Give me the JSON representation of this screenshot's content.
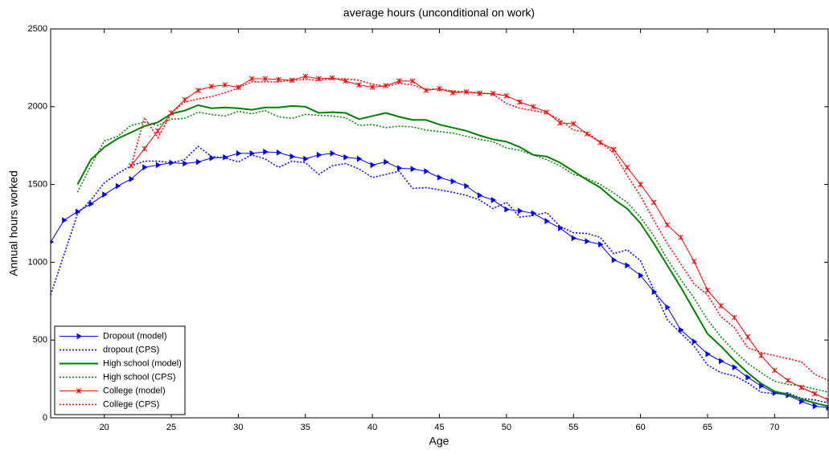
{
  "chart_data": {
    "type": "line",
    "title": "average hours (unconditional on work)",
    "xlabel": "Age",
    "ylabel": "Annual hours worked",
    "x": [
      16,
      17,
      18,
      19,
      20,
      21,
      22,
      23,
      24,
      25,
      26,
      27,
      28,
      29,
      30,
      31,
      32,
      33,
      34,
      35,
      36,
      37,
      38,
      39,
      40,
      41,
      42,
      43,
      44,
      45,
      46,
      47,
      48,
      49,
      50,
      51,
      52,
      53,
      54,
      55,
      56,
      57,
      58,
      59,
      60,
      61,
      62,
      63,
      64,
      65,
      66,
      67,
      68,
      69,
      70,
      71,
      72,
      73,
      74
    ],
    "xlim": [
      16,
      74
    ],
    "xticks": [
      20,
      25,
      30,
      35,
      40,
      45,
      50,
      55,
      60,
      65,
      70
    ],
    "ylim": [
      0,
      2500
    ],
    "yticks": [
      0,
      500,
      1000,
      1500,
      2000,
      2500
    ],
    "grid": false,
    "legend": "lower left",
    "series": [
      {
        "name": "Dropout (model)",
        "color": "#0000ff",
        "linestyle": "solid",
        "linewidth": 1,
        "marker": "triangle",
        "values": [
          1130,
          1270,
          1325,
          1375,
          1435,
          1490,
          1535,
          1610,
          1625,
          1640,
          1635,
          1645,
          1670,
          1675,
          1700,
          1700,
          1710,
          1705,
          1680,
          1665,
          1690,
          1700,
          1675,
          1665,
          1625,
          1645,
          1605,
          1600,
          1585,
          1545,
          1520,
          1490,
          1430,
          1400,
          1340,
          1330,
          1315,
          1265,
          1220,
          1155,
          1135,
          1115,
          1015,
          980,
          915,
          810,
          710,
          565,
          490,
          410,
          365,
          325,
          260,
          205,
          160,
          145,
          105,
          75,
          65
        ]
      },
      {
        "name": "dropout (CPS)",
        "color": "#0000ff",
        "linestyle": "dotted",
        "linewidth": 1.5,
        "marker": "none",
        "values": [
          790,
          1050,
          1310,
          1400,
          1510,
          1570,
          1620,
          1650,
          1650,
          1640,
          1660,
          1745,
          1680,
          1670,
          1645,
          1690,
          1665,
          1610,
          1650,
          1640,
          1565,
          1620,
          1635,
          1600,
          1545,
          1565,
          1585,
          1475,
          1480,
          1465,
          1450,
          1430,
          1400,
          1345,
          1385,
          1290,
          1300,
          1320,
          1230,
          1190,
          1185,
          1160,
          1055,
          1080,
          1010,
          820,
          630,
          545,
          460,
          340,
          290,
          270,
          225,
          165,
          155,
          160,
          125,
          115,
          95
        ]
      },
      {
        "name": "High school (model)",
        "color": "#008000",
        "linestyle": "solid",
        "linewidth": 2,
        "marker": "none",
        "values": [
          null,
          null,
          1500,
          1660,
          1740,
          1795,
          1835,
          1875,
          1900,
          1955,
          1975,
          2010,
          1990,
          1995,
          1990,
          1980,
          1995,
          1995,
          2005,
          2000,
          1960,
          1965,
          1960,
          1920,
          1940,
          1960,
          1935,
          1915,
          1915,
          1885,
          1865,
          1845,
          1815,
          1790,
          1775,
          1740,
          1690,
          1680,
          1640,
          1585,
          1530,
          1480,
          1405,
          1345,
          1250,
          1120,
          980,
          840,
          690,
          540,
          460,
          370,
          290,
          220,
          170,
          150,
          120,
          95,
          75
        ]
      },
      {
        "name": "High school (CPS)",
        "color": "#008000",
        "linestyle": "dotted",
        "linewidth": 1.5,
        "marker": "none",
        "values": [
          null,
          null,
          1450,
          1620,
          1780,
          1810,
          1880,
          1900,
          1880,
          1920,
          1925,
          1965,
          1950,
          1940,
          1970,
          1955,
          1975,
          1935,
          1925,
          1950,
          1945,
          1940,
          1930,
          1880,
          1885,
          1865,
          1875,
          1870,
          1850,
          1840,
          1830,
          1810,
          1790,
          1775,
          1735,
          1720,
          1690,
          1660,
          1620,
          1565,
          1540,
          1500,
          1445,
          1385,
          1290,
          1170,
          1020,
          890,
          770,
          630,
          520,
          430,
          350,
          290,
          235,
          215,
          205,
          185,
          165
        ]
      },
      {
        "name": "College (model)",
        "color": "#ff0000",
        "linestyle": "solid",
        "linewidth": 1,
        "marker": "x",
        "values": [
          null,
          null,
          null,
          null,
          null,
          null,
          1620,
          1730,
          1845,
          1960,
          2045,
          2105,
          2130,
          2140,
          2125,
          2180,
          2180,
          2175,
          2170,
          2195,
          2180,
          2185,
          2165,
          2140,
          2125,
          2135,
          2165,
          2165,
          2105,
          2115,
          2090,
          2095,
          2085,
          2085,
          2070,
          2030,
          2000,
          1965,
          1895,
          1890,
          1825,
          1770,
          1725,
          1610,
          1500,
          1385,
          1240,
          1160,
          1005,
          820,
          720,
          645,
          520,
          400,
          305,
          240,
          195,
          155,
          115
        ]
      },
      {
        "name": "College (CPS)",
        "color": "#ff0000",
        "linestyle": "dotted",
        "linewidth": 1.5,
        "marker": "none",
        "values": [
          null,
          null,
          null,
          null,
          null,
          null,
          1620,
          1930,
          1800,
          1960,
          2030,
          2050,
          2065,
          2090,
          2120,
          2160,
          2160,
          2160,
          2170,
          2175,
          2170,
          2180,
          2180,
          2170,
          2145,
          2130,
          2150,
          2140,
          2110,
          2115,
          2100,
          2095,
          2090,
          2080,
          2020,
          1990,
          1975,
          1960,
          1915,
          1850,
          1835,
          1770,
          1705,
          1560,
          1425,
          1270,
          1120,
          990,
          860,
          790,
          650,
          580,
          450,
          420,
          400,
          380,
          360,
          280,
          240
        ]
      }
    ]
  }
}
